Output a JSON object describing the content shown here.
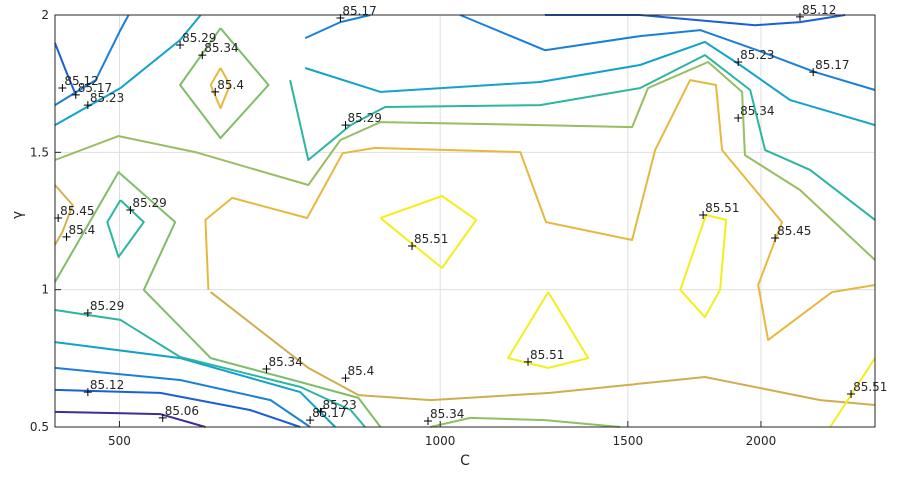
{
  "chart_data": {
    "type": "contour",
    "xlabel": "C",
    "ylabel": "γ",
    "xscale": "log",
    "grid": true,
    "xlim": [
      435,
      2559
    ],
    "ylim": [
      0.5,
      2
    ],
    "xticks": [
      500,
      1000,
      1500,
      2000
    ],
    "yticks": [
      0.5,
      1,
      1.5,
      2
    ],
    "series": [
      {
        "color": "#3e2d95",
        "x": [
          435,
          546,
          602
        ],
        "y": [
          0.555,
          0.547,
          0.5
        ]
      },
      {
        "color": "#1b5fd4",
        "x": [
          435,
          546,
          663,
          739
        ],
        "y": [
          0.635,
          0.624,
          0.562,
          0.5
        ]
      },
      {
        "color": "#1a7fd9",
        "x": [
          435,
          570,
          693,
          755
        ],
        "y": [
          0.715,
          0.671,
          0.598,
          0.5
        ]
      },
      {
        "color": "#13a2cb",
        "x": [
          435,
          570,
          739,
          797
        ],
        "y": [
          0.809,
          0.751,
          0.627,
          0.5
        ]
      },
      {
        "color": "#2cb5a0",
        "x": [
          435,
          501,
          570,
          739,
          824,
          850
        ],
        "y": [
          0.926,
          0.89,
          0.755,
          0.646,
          0.562,
          0.5
        ]
      },
      {
        "color": "#7fbd6a",
        "x": [
          435,
          499,
          564,
          527,
          609,
          739,
          838,
          879
        ],
        "y": [
          1.028,
          1.428,
          1.246,
          0.999,
          0.751,
          0.664,
          0.606,
          0.5
        ]
      },
      {
        "color": "#2cb5a0",
        "x": [
          501,
          527,
          499,
          487,
          501
        ],
        "y": [
          1.326,
          1.246,
          1.119,
          1.246,
          1.326
        ]
      },
      {
        "color": "#d4b24c",
        "x": [
          435,
          452,
          442,
          435
        ],
        "y": [
          1.381,
          1.308,
          1.21,
          1.163
        ]
      },
      {
        "color": "#98bd62",
        "x": [
          435,
          499,
          589,
          752,
          806,
          879,
          1241,
          1514,
          1567,
          1784,
          1920,
          1932,
          2176,
          2559
        ],
        "y": [
          1.472,
          1.559,
          1.501,
          1.381,
          1.545,
          1.61,
          1.599,
          1.592,
          1.734,
          1.829,
          1.72,
          1.49,
          1.363,
          1.108
        ]
      },
      {
        "color": "#e6b93e",
        "x": [
          606,
          602,
          638,
          750,
          810,
          869,
          1189,
          1257,
          1514,
          1591,
          1716,
          1815,
          1839,
          2093,
          1988,
          2031,
          2332,
          2559
        ],
        "y": [
          0.999,
          1.254,
          1.334,
          1.261,
          1.497,
          1.516,
          1.501,
          1.246,
          1.181,
          1.508,
          1.763,
          1.745,
          1.508,
          1.246,
          1.017,
          0.817,
          0.991,
          1.017
        ]
      },
      {
        "color": "#cfae4e",
        "x": [
          609,
          752,
          838,
          979,
          1268,
          1772,
          2273,
          2559
        ],
        "y": [
          0.991,
          0.715,
          0.616,
          0.598,
          0.624,
          0.682,
          0.598,
          0.58
        ]
      },
      {
        "color": "#8fbf62",
        "x": [
          979,
          1067,
          1254,
          1475
        ],
        "y": [
          0.5,
          0.533,
          0.525,
          0.5
        ]
      },
      {
        "color": "#f4ee1a",
        "x": [
          879,
          1004,
          1081,
          1004,
          879
        ],
        "y": [
          1.261,
          1.341,
          1.254,
          1.079,
          1.261
        ]
      },
      {
        "color": "#f4ee1a",
        "x": [
          1263,
          1377,
          1263,
          1158,
          1263
        ],
        "y": [
          0.991,
          0.751,
          0.715,
          0.751,
          0.991
        ]
      },
      {
        "color": "#f4ee1a",
        "x": [
          1776,
          1855,
          1831,
          1772,
          1680,
          1776
        ],
        "y": [
          1.272,
          1.254,
          0.999,
          0.9,
          0.999,
          1.272
        ]
      },
      {
        "color": "#f4ee1a",
        "x": [
          2323,
          2559
        ],
        "y": [
          0.5,
          0.751
        ]
      },
      {
        "color": "#13a2cb",
        "x": [
          435,
          501,
          570,
          596
        ],
        "y": [
          1.599,
          1.734,
          1.909,
          2.0
        ]
      },
      {
        "color": "#1b5fd4",
        "x": [
          435,
          445,
          455
        ],
        "y": [
          1.898,
          1.8,
          1.709
        ]
      },
      {
        "color": "#1a7fd9",
        "x": [
          435,
          475,
          501,
          510
        ],
        "y": [
          1.672,
          1.763,
          1.945,
          2.0
        ]
      },
      {
        "color": "#1a7fd9",
        "x": [
          747,
          806,
          860
        ],
        "y": [
          1.916,
          1.974,
          2.0
        ]
      },
      {
        "color": "#1b5fd4",
        "x": [
          1254,
          1540,
          1975,
          2176,
          2399
        ],
        "y": [
          2.0,
          2.0,
          1.963,
          1.974,
          2.0
        ]
      },
      {
        "color": "#1a7fd9",
        "x": [
          1044,
          1254,
          1540,
          1754,
          1984,
          2248,
          2559
        ],
        "y": [
          2.0,
          1.872,
          1.923,
          1.945,
          1.872,
          1.792,
          1.727
        ]
      },
      {
        "color": "#13a2cb",
        "x": [
          747,
          879,
          1241,
          1540,
          1772,
          1912,
          2130,
          2559
        ],
        "y": [
          1.807,
          1.72,
          1.756,
          1.818,
          1.902,
          1.818,
          1.69,
          1.599
        ]
      },
      {
        "color": "#2cb5a0",
        "x": [
          723,
          752,
          824,
          888,
          1241,
          1540,
          1772,
          1954,
          2018,
          2224,
          2559
        ],
        "y": [
          1.763,
          1.472,
          1.599,
          1.665,
          1.672,
          1.734,
          1.854,
          1.727,
          1.508,
          1.436,
          1.254
        ]
      },
      {
        "color": "#7fbd6a",
        "x": [
          622,
          690,
          622,
          570,
          622
        ],
        "y": [
          1.952,
          1.745,
          1.552,
          1.745,
          1.952
        ]
      },
      {
        "color": "#e6b93e",
        "x": [
          622,
          635,
          622,
          609,
          622
        ],
        "y": [
          1.807,
          1.745,
          1.661,
          1.745,
          1.807
        ]
      }
    ],
    "contour_labels": [
      {
        "x": 806,
        "y": 1.989,
        "value": 85.17
      },
      {
        "x": 2176,
        "y": 1.993,
        "value": 85.12
      },
      {
        "x": 570,
        "y": 1.891,
        "value": 85.29
      },
      {
        "x": 598,
        "y": 1.854,
        "value": 85.34
      },
      {
        "x": 615,
        "y": 1.72,
        "value": 85.4
      },
      {
        "x": 1904,
        "y": 1.829,
        "value": 85.23
      },
      {
        "x": 2239,
        "y": 1.792,
        "value": 85.17
      },
      {
        "x": 442,
        "y": 1.734,
        "value": 85.12
      },
      {
        "x": 455,
        "y": 1.709,
        "value": 85.17
      },
      {
        "x": 467,
        "y": 1.672,
        "value": 85.23
      },
      {
        "x": 815,
        "y": 1.599,
        "value": 85.29
      },
      {
        "x": 1904,
        "y": 1.625,
        "value": 85.34
      },
      {
        "x": 438,
        "y": 1.261,
        "value": 85.45
      },
      {
        "x": 446,
        "y": 1.192,
        "value": 85.4
      },
      {
        "x": 512,
        "y": 1.29,
        "value": 85.29
      },
      {
        "x": 941,
        "y": 1.159,
        "value": 85.51
      },
      {
        "x": 1765,
        "y": 1.272,
        "value": 85.51
      },
      {
        "x": 2062,
        "y": 1.188,
        "value": 85.45
      },
      {
        "x": 467,
        "y": 0.915,
        "value": 85.29
      },
      {
        "x": 1209,
        "y": 0.737,
        "value": 85.51
      },
      {
        "x": 687,
        "y": 0.711,
        "value": 85.34
      },
      {
        "x": 815,
        "y": 0.678,
        "value": 85.4
      },
      {
        "x": 467,
        "y": 0.627,
        "value": 85.12
      },
      {
        "x": 549,
        "y": 0.533,
        "value": 85.06
      },
      {
        "x": 772,
        "y": 0.555,
        "value": 85.23
      },
      {
        "x": 755,
        "y": 0.525,
        "value": 85.17
      },
      {
        "x": 974,
        "y": 0.522,
        "value": 85.34
      },
      {
        "x": 2430,
        "y": 0.62,
        "value": 85.51
      }
    ]
  }
}
